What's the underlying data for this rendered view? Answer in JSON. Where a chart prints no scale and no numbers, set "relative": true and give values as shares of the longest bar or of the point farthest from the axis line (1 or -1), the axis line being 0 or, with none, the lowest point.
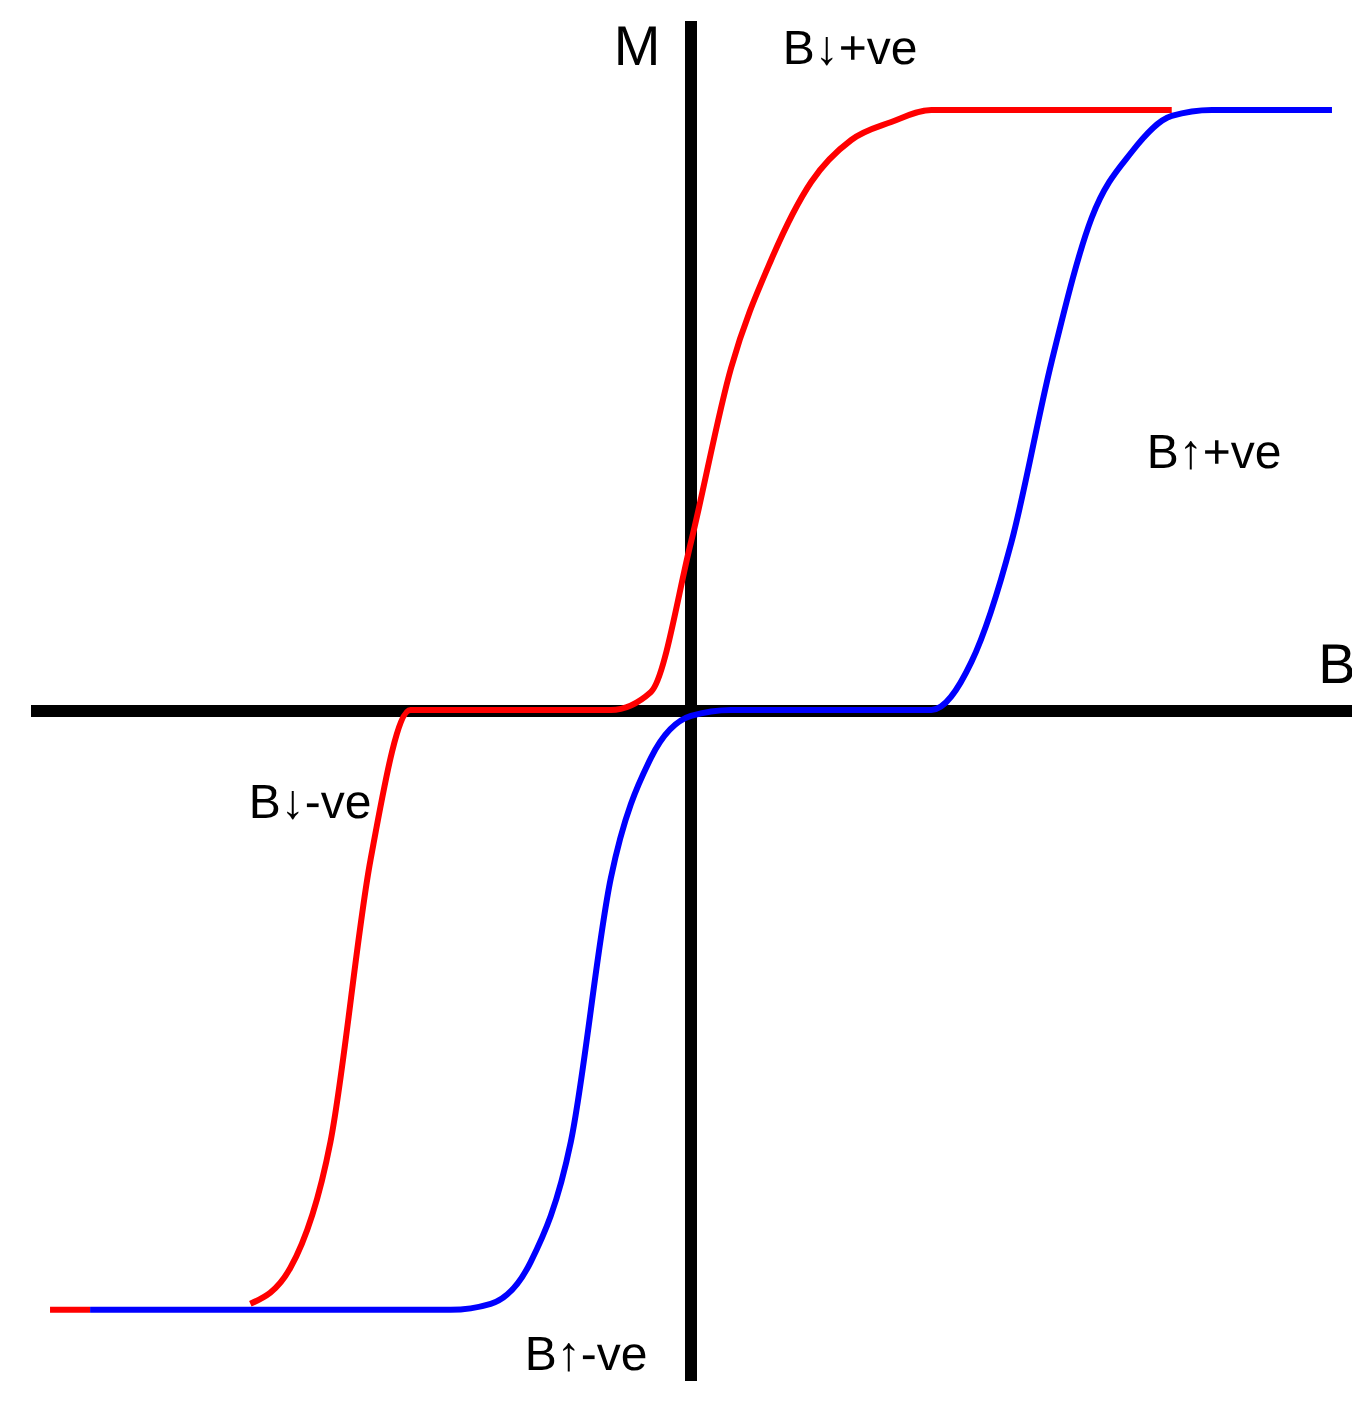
{
  "chart_data": {
    "type": "line",
    "relative": true,
    "xlabel": "B",
    "ylabel": "M",
    "categories": [
      null,
      null,
      null,
      null,
      null,
      null,
      null,
      null,
      null,
      null,
      null,
      null,
      null,
      null,
      null,
      null,
      null,
      null,
      null,
      null,
      null,
      null,
      null,
      null,
      null,
      null,
      null,
      null,
      null,
      null,
      null,
      null,
      null
    ],
    "series": [
      {
        "color": "#ff0000",
        "values": [
          -1,
          -1,
          null,
          null,
          null,
          -0.99,
          -0.93,
          -0.72,
          -0.25,
          0,
          0,
          0,
          0,
          0,
          0,
          0.03,
          0.28,
          0.57,
          0.75,
          0.88,
          0.95,
          0.98,
          1,
          1,
          1,
          1,
          1,
          1,
          1,
          null,
          null,
          null,
          null
        ]
      },
      {
        "color": "#0000ff",
        "values": [
          null,
          -1,
          -1,
          -1,
          -1,
          -1,
          -1,
          -1,
          -1,
          -1,
          -1,
          -0.99,
          -0.92,
          -0.72,
          -0.28,
          -0.08,
          -0.01,
          0,
          0,
          0,
          0,
          0,
          0,
          0.08,
          0.28,
          0.58,
          0.82,
          0.93,
          0.99,
          1,
          1,
          1,
          1
        ]
      }
    ],
    "annotations": [
      "B↓+ve",
      "B↑+ve",
      "B↓-ve",
      "B↑-ve"
    ]
  }
}
